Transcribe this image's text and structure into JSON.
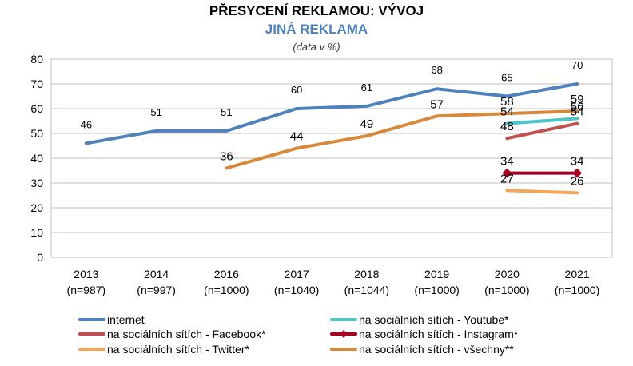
{
  "chart_data": {
    "type": "line",
    "title": "PŘESYCENÍ REKLAMOU: VÝVOJ",
    "subtitle": "JINÁ REKLAMA",
    "note": "(data v %)",
    "categories": [
      "2013",
      "2014",
      "2016",
      "2017",
      "2018",
      "2019",
      "2020",
      "2021"
    ],
    "category_sublabels": [
      "(n=987)",
      "(n=997)",
      "(n=1000)",
      "(n=1040)",
      "(n=1044)",
      "(n=1000)",
      "(n=1000)",
      "(n=1000)"
    ],
    "ylim": [
      0,
      80
    ],
    "yticks": [
      0,
      10,
      20,
      30,
      40,
      50,
      60,
      70,
      80
    ],
    "grid": true,
    "legend_position": "bottom",
    "series": [
      {
        "name": "internet",
        "color": "#4F81BD",
        "marker": "none",
        "label_size": "small",
        "values": [
          46,
          51,
          51,
          60,
          61,
          68,
          65,
          70
        ],
        "labels": [
          "46",
          "51",
          "51",
          "60",
          "61",
          "68",
          "65",
          "70"
        ]
      },
      {
        "name": "na sociálních sítích - Youtube*",
        "color": "#4BC6C6",
        "marker": "none",
        "label_size": "large",
        "values": [
          null,
          null,
          null,
          null,
          null,
          null,
          54,
          56
        ],
        "labels": [
          null,
          null,
          null,
          null,
          null,
          null,
          "54",
          "56"
        ]
      },
      {
        "name": "na sociálních sítích - Facebook*",
        "color": "#C0504D",
        "marker": "none",
        "label_size": "large",
        "values": [
          null,
          null,
          null,
          null,
          null,
          null,
          48,
          54
        ],
        "labels": [
          null,
          null,
          null,
          null,
          null,
          null,
          "48",
          "54"
        ]
      },
      {
        "name": "na sociálních sítích - Instagram*",
        "color": "#A50021",
        "marker": "diamond",
        "label_size": "large",
        "values": [
          null,
          null,
          null,
          null,
          null,
          null,
          34,
          34
        ],
        "labels": [
          null,
          null,
          null,
          null,
          null,
          null,
          "34",
          "34"
        ]
      },
      {
        "name": "na sociálních sítích - Twitter*",
        "color": "#F5A65B",
        "marker": "none",
        "label_size": "large",
        "values": [
          null,
          null,
          null,
          null,
          null,
          null,
          27,
          26
        ],
        "labels": [
          null,
          null,
          null,
          null,
          null,
          null,
          "27",
          "26"
        ]
      },
      {
        "name": "na sociálních sítích - všechny**",
        "color": "#D9883B",
        "marker": "none",
        "label_size": "large",
        "values": [
          null,
          null,
          36,
          44,
          49,
          57,
          58,
          59
        ],
        "labels": [
          null,
          null,
          "36",
          "44",
          "49",
          "57",
          "58",
          "59"
        ]
      }
    ]
  }
}
